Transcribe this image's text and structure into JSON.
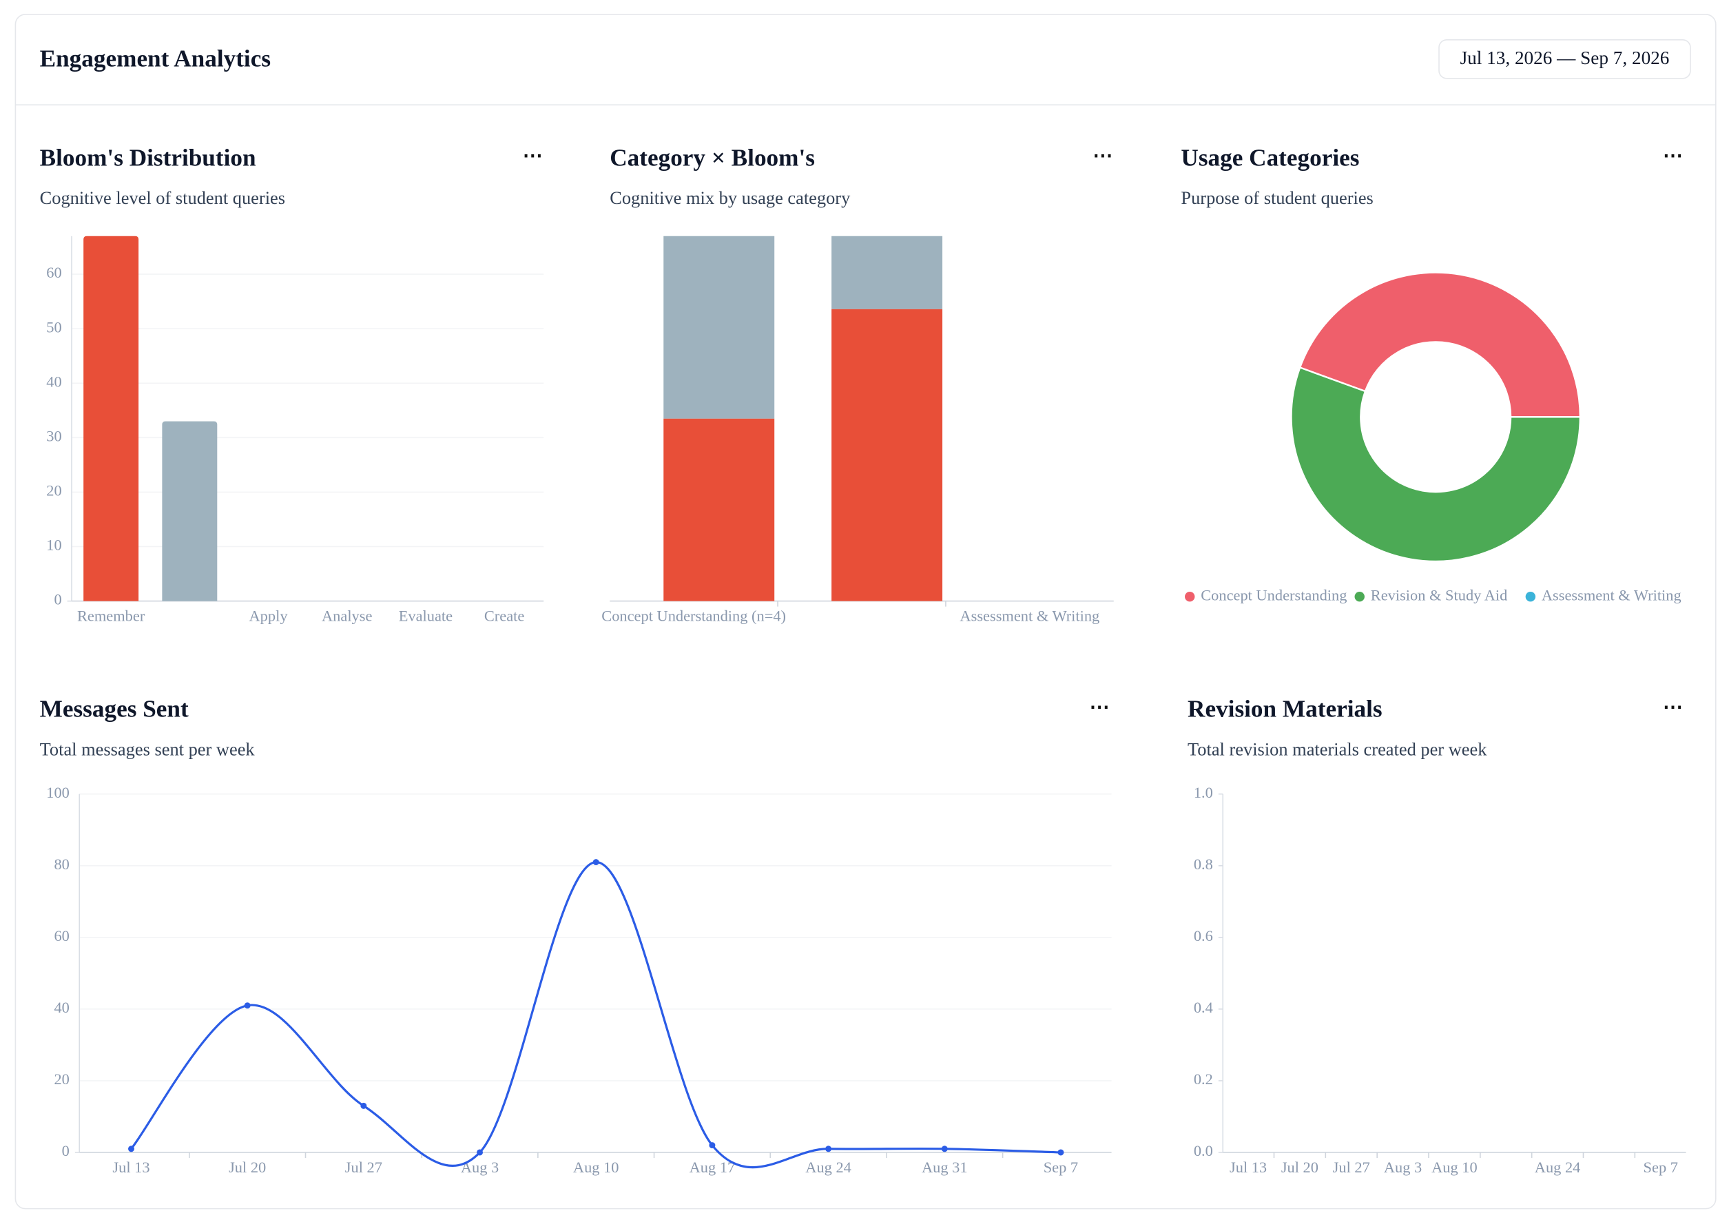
{
  "header": {
    "title": "Engagement Analytics",
    "date_range": "Jul 13, 2026 — Sep 7, 2026"
  },
  "chart_data": [
    {
      "type": "bar",
      "title": "Bloom's Distribution",
      "subtitle": "Cognitive level of student queries",
      "categories": [
        "Remember",
        null,
        "Apply",
        "Analyse",
        "Evaluate",
        "Create"
      ],
      "values": [
        67,
        33,
        0,
        0,
        0,
        0
      ],
      "colors": [
        "#e84f38",
        "#9eb2be"
      ],
      "ylim": [
        0,
        67
      ],
      "yticks": [
        0,
        10,
        20,
        30,
        40,
        50,
        60
      ],
      "grid": true
    },
    {
      "type": "stacked_bar",
      "title": "Category × Bloom's",
      "subtitle": "Cognitive mix by usage category",
      "categories": [
        "Concept Understanding (n=4)",
        null,
        "Assessment & Writing"
      ],
      "series": [
        {
          "color": "#e84f38",
          "values": [
            50,
            80,
            0
          ]
        },
        {
          "color": "#9eb2be",
          "values": [
            50,
            20,
            0
          ]
        }
      ],
      "ylim": [
        0,
        100
      ]
    },
    {
      "type": "donut",
      "title": "Usage Categories",
      "subtitle": "Purpose of student queries",
      "categories": [
        "Concept Understanding",
        "Revision & Study Aid",
        "Assessment & Writing"
      ],
      "values": [
        4,
        5,
        0
      ],
      "colors": [
        "#ef5f6b",
        "#4caa55",
        "#3bb3d9"
      ]
    },
    {
      "type": "line",
      "title": "Messages Sent",
      "subtitle": "Total messages sent per week",
      "categories": [
        "Jul 13",
        "Jul 20",
        "Jul 27",
        "Aug 3",
        "Aug 10",
        "Aug 17",
        "Aug 24",
        "Aug 31",
        "Sep 7"
      ],
      "values": [
        1,
        41,
        13,
        0,
        81,
        2,
        1,
        1,
        0
      ],
      "color": "#2b5ce6",
      "ylim": [
        0,
        100
      ],
      "yticks": [
        0,
        20,
        40,
        60,
        80,
        100
      ],
      "grid": true
    },
    {
      "type": "line",
      "title": "Revision Materials",
      "subtitle": "Total revision materials created per week",
      "categories": [
        "Jul 13",
        "Jul 20",
        "Jul 27",
        "Aug 3",
        "Aug 10",
        null,
        "Aug 24",
        null,
        "Sep 7"
      ],
      "values": [
        null,
        null,
        null,
        null,
        null,
        null,
        null,
        null,
        null
      ],
      "color": "#2b5ce6",
      "ylim": [
        0,
        1
      ],
      "yticks": [
        {
          "value": 0,
          "label": "0.0"
        },
        0.2,
        0.4,
        0.6,
        0.8,
        {
          "value": 1,
          "label": "1.0"
        }
      ]
    }
  ]
}
